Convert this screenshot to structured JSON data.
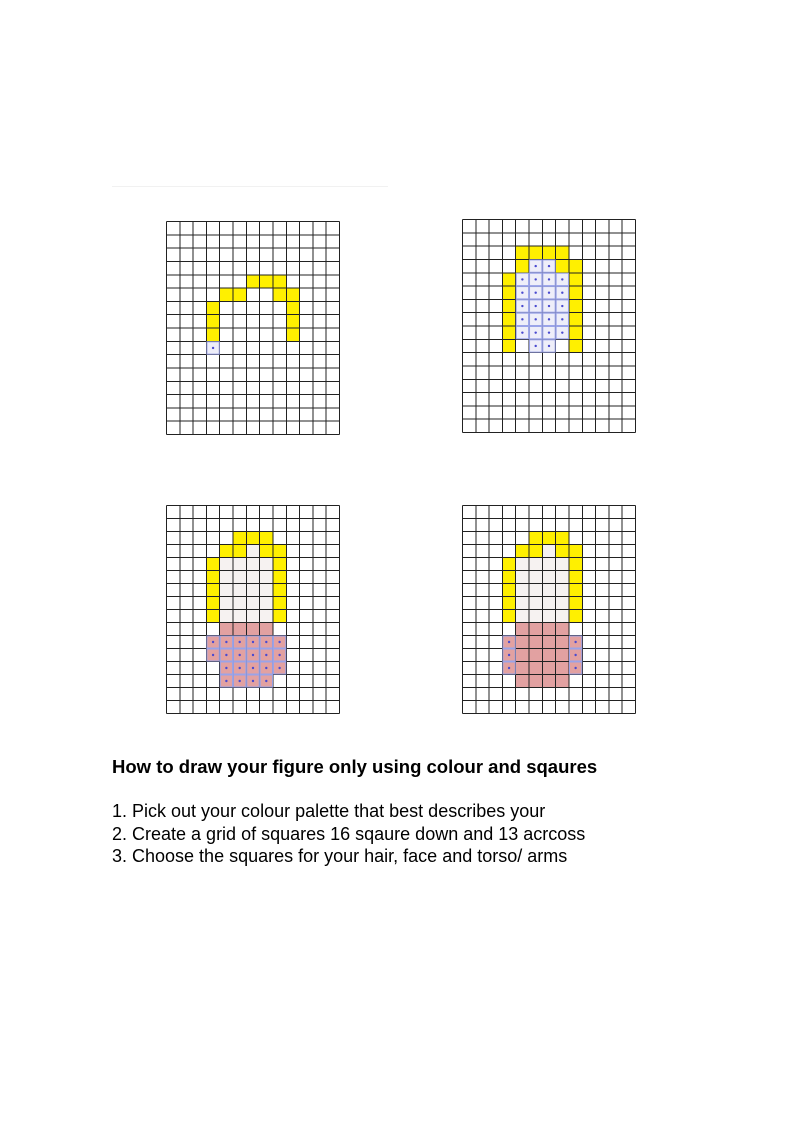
{
  "grid": {
    "columns": 13,
    "rows": 16,
    "line_color": "#222222"
  },
  "colors": {
    "hair": "#fff000",
    "face_fill": "#f6f2f1",
    "face_selected": "#eeeef9",
    "torso": "#e2a1a1",
    "selection_outline": "#9aa3e8",
    "selection_dot": "#4a4ad0"
  },
  "panels": [
    {
      "step": 1,
      "hair": [
        [
          6,
          4
        ],
        [
          7,
          4
        ],
        [
          8,
          4
        ],
        [
          4,
          5
        ],
        [
          5,
          5
        ],
        [
          8,
          5
        ],
        [
          9,
          5
        ],
        [
          3,
          6
        ],
        [
          9,
          6
        ],
        [
          3,
          7
        ],
        [
          9,
          7
        ],
        [
          3,
          8
        ],
        [
          9,
          8
        ]
      ],
      "face": [],
      "face_selected": [
        [
          3,
          9
        ]
      ],
      "torso": [],
      "torso_selected": []
    },
    {
      "step": 2,
      "hair": [
        [
          4,
          2
        ],
        [
          5,
          2
        ],
        [
          6,
          2
        ],
        [
          7,
          2
        ],
        [
          4,
          3
        ],
        [
          7,
          3
        ],
        [
          8,
          3
        ],
        [
          3,
          4
        ],
        [
          8,
          4
        ],
        [
          3,
          5
        ],
        [
          8,
          5
        ],
        [
          3,
          6
        ],
        [
          8,
          6
        ],
        [
          3,
          7
        ],
        [
          8,
          7
        ],
        [
          3,
          8
        ],
        [
          8,
          8
        ],
        [
          3,
          9
        ],
        [
          8,
          9
        ]
      ],
      "face": [],
      "face_selected": [
        [
          5,
          3
        ],
        [
          6,
          3
        ],
        [
          4,
          4
        ],
        [
          5,
          4
        ],
        [
          6,
          4
        ],
        [
          7,
          4
        ],
        [
          4,
          5
        ],
        [
          5,
          5
        ],
        [
          6,
          5
        ],
        [
          7,
          5
        ],
        [
          4,
          6
        ],
        [
          5,
          6
        ],
        [
          6,
          6
        ],
        [
          7,
          6
        ],
        [
          4,
          7
        ],
        [
          5,
          7
        ],
        [
          6,
          7
        ],
        [
          7,
          7
        ],
        [
          4,
          8
        ],
        [
          5,
          8
        ],
        [
          6,
          8
        ],
        [
          7,
          8
        ],
        [
          5,
          9
        ],
        [
          6,
          9
        ]
      ],
      "torso": [],
      "torso_selected": []
    },
    {
      "step": 3,
      "hair": [
        [
          5,
          2
        ],
        [
          6,
          2
        ],
        [
          7,
          2
        ],
        [
          4,
          3
        ],
        [
          5,
          3
        ],
        [
          7,
          3
        ],
        [
          8,
          3
        ],
        [
          3,
          4
        ],
        [
          8,
          4
        ],
        [
          3,
          5
        ],
        [
          8,
          5
        ],
        [
          3,
          6
        ],
        [
          8,
          6
        ],
        [
          3,
          7
        ],
        [
          8,
          7
        ],
        [
          3,
          8
        ],
        [
          8,
          8
        ]
      ],
      "face": [
        [
          6,
          3
        ],
        [
          4,
          4
        ],
        [
          5,
          4
        ],
        [
          6,
          4
        ],
        [
          7,
          4
        ],
        [
          4,
          5
        ],
        [
          5,
          5
        ],
        [
          6,
          5
        ],
        [
          7,
          5
        ],
        [
          4,
          6
        ],
        [
          5,
          6
        ],
        [
          6,
          6
        ],
        [
          7,
          6
        ],
        [
          4,
          7
        ],
        [
          5,
          7
        ],
        [
          6,
          7
        ],
        [
          7,
          7
        ],
        [
          4,
          8
        ],
        [
          5,
          8
        ],
        [
          6,
          8
        ],
        [
          7,
          8
        ]
      ],
      "face_selected": [],
      "torso": [
        [
          4,
          9
        ],
        [
          5,
          9
        ],
        [
          6,
          9
        ],
        [
          7,
          9
        ]
      ],
      "torso_selected": [
        [
          3,
          10
        ],
        [
          4,
          10
        ],
        [
          5,
          10
        ],
        [
          6,
          10
        ],
        [
          7,
          10
        ],
        [
          8,
          10
        ],
        [
          3,
          11
        ],
        [
          4,
          11
        ],
        [
          5,
          11
        ],
        [
          6,
          11
        ],
        [
          7,
          11
        ],
        [
          8,
          11
        ],
        [
          4,
          12
        ],
        [
          5,
          12
        ],
        [
          6,
          12
        ],
        [
          7,
          12
        ],
        [
          8,
          12
        ],
        [
          4,
          13
        ],
        [
          5,
          13
        ],
        [
          6,
          13
        ],
        [
          7,
          13
        ]
      ]
    },
    {
      "step": 4,
      "hair": [
        [
          5,
          2
        ],
        [
          6,
          2
        ],
        [
          7,
          2
        ],
        [
          4,
          3
        ],
        [
          5,
          3
        ],
        [
          7,
          3
        ],
        [
          8,
          3
        ],
        [
          3,
          4
        ],
        [
          8,
          4
        ],
        [
          3,
          5
        ],
        [
          8,
          5
        ],
        [
          3,
          6
        ],
        [
          8,
          6
        ],
        [
          3,
          7
        ],
        [
          8,
          7
        ],
        [
          3,
          8
        ],
        [
          8,
          8
        ]
      ],
      "face": [
        [
          6,
          3
        ],
        [
          4,
          4
        ],
        [
          5,
          4
        ],
        [
          6,
          4
        ],
        [
          7,
          4
        ],
        [
          4,
          5
        ],
        [
          5,
          5
        ],
        [
          6,
          5
        ],
        [
          7,
          5
        ],
        [
          4,
          6
        ],
        [
          5,
          6
        ],
        [
          6,
          6
        ],
        [
          7,
          6
        ],
        [
          4,
          7
        ],
        [
          5,
          7
        ],
        [
          6,
          7
        ],
        [
          7,
          7
        ],
        [
          4,
          8
        ],
        [
          5,
          8
        ],
        [
          6,
          8
        ],
        [
          7,
          8
        ]
      ],
      "face_selected": [],
      "torso": [
        [
          4,
          9
        ],
        [
          5,
          9
        ],
        [
          6,
          9
        ],
        [
          7,
          9
        ],
        [
          4,
          10
        ],
        [
          5,
          10
        ],
        [
          6,
          10
        ],
        [
          7,
          10
        ],
        [
          4,
          11
        ],
        [
          5,
          11
        ],
        [
          6,
          11
        ],
        [
          7,
          11
        ],
        [
          4,
          12
        ],
        [
          5,
          12
        ],
        [
          6,
          12
        ],
        [
          7,
          12
        ],
        [
          4,
          13
        ],
        [
          5,
          13
        ],
        [
          6,
          13
        ],
        [
          7,
          13
        ]
      ],
      "torso_selected": [
        [
          3,
          10
        ],
        [
          8,
          10
        ],
        [
          3,
          11
        ],
        [
          8,
          11
        ],
        [
          3,
          12
        ],
        [
          8,
          12
        ]
      ]
    }
  ],
  "instructions": {
    "heading": "How to draw your figure only using colour and sqaures",
    "steps": [
      "1. Pick out your colour palette that best describes your",
      "2. Create a grid of squares 16 sqaure down and 13 acrcoss",
      "3. Choose the squares for your hair, face and torso/ arms"
    ]
  }
}
